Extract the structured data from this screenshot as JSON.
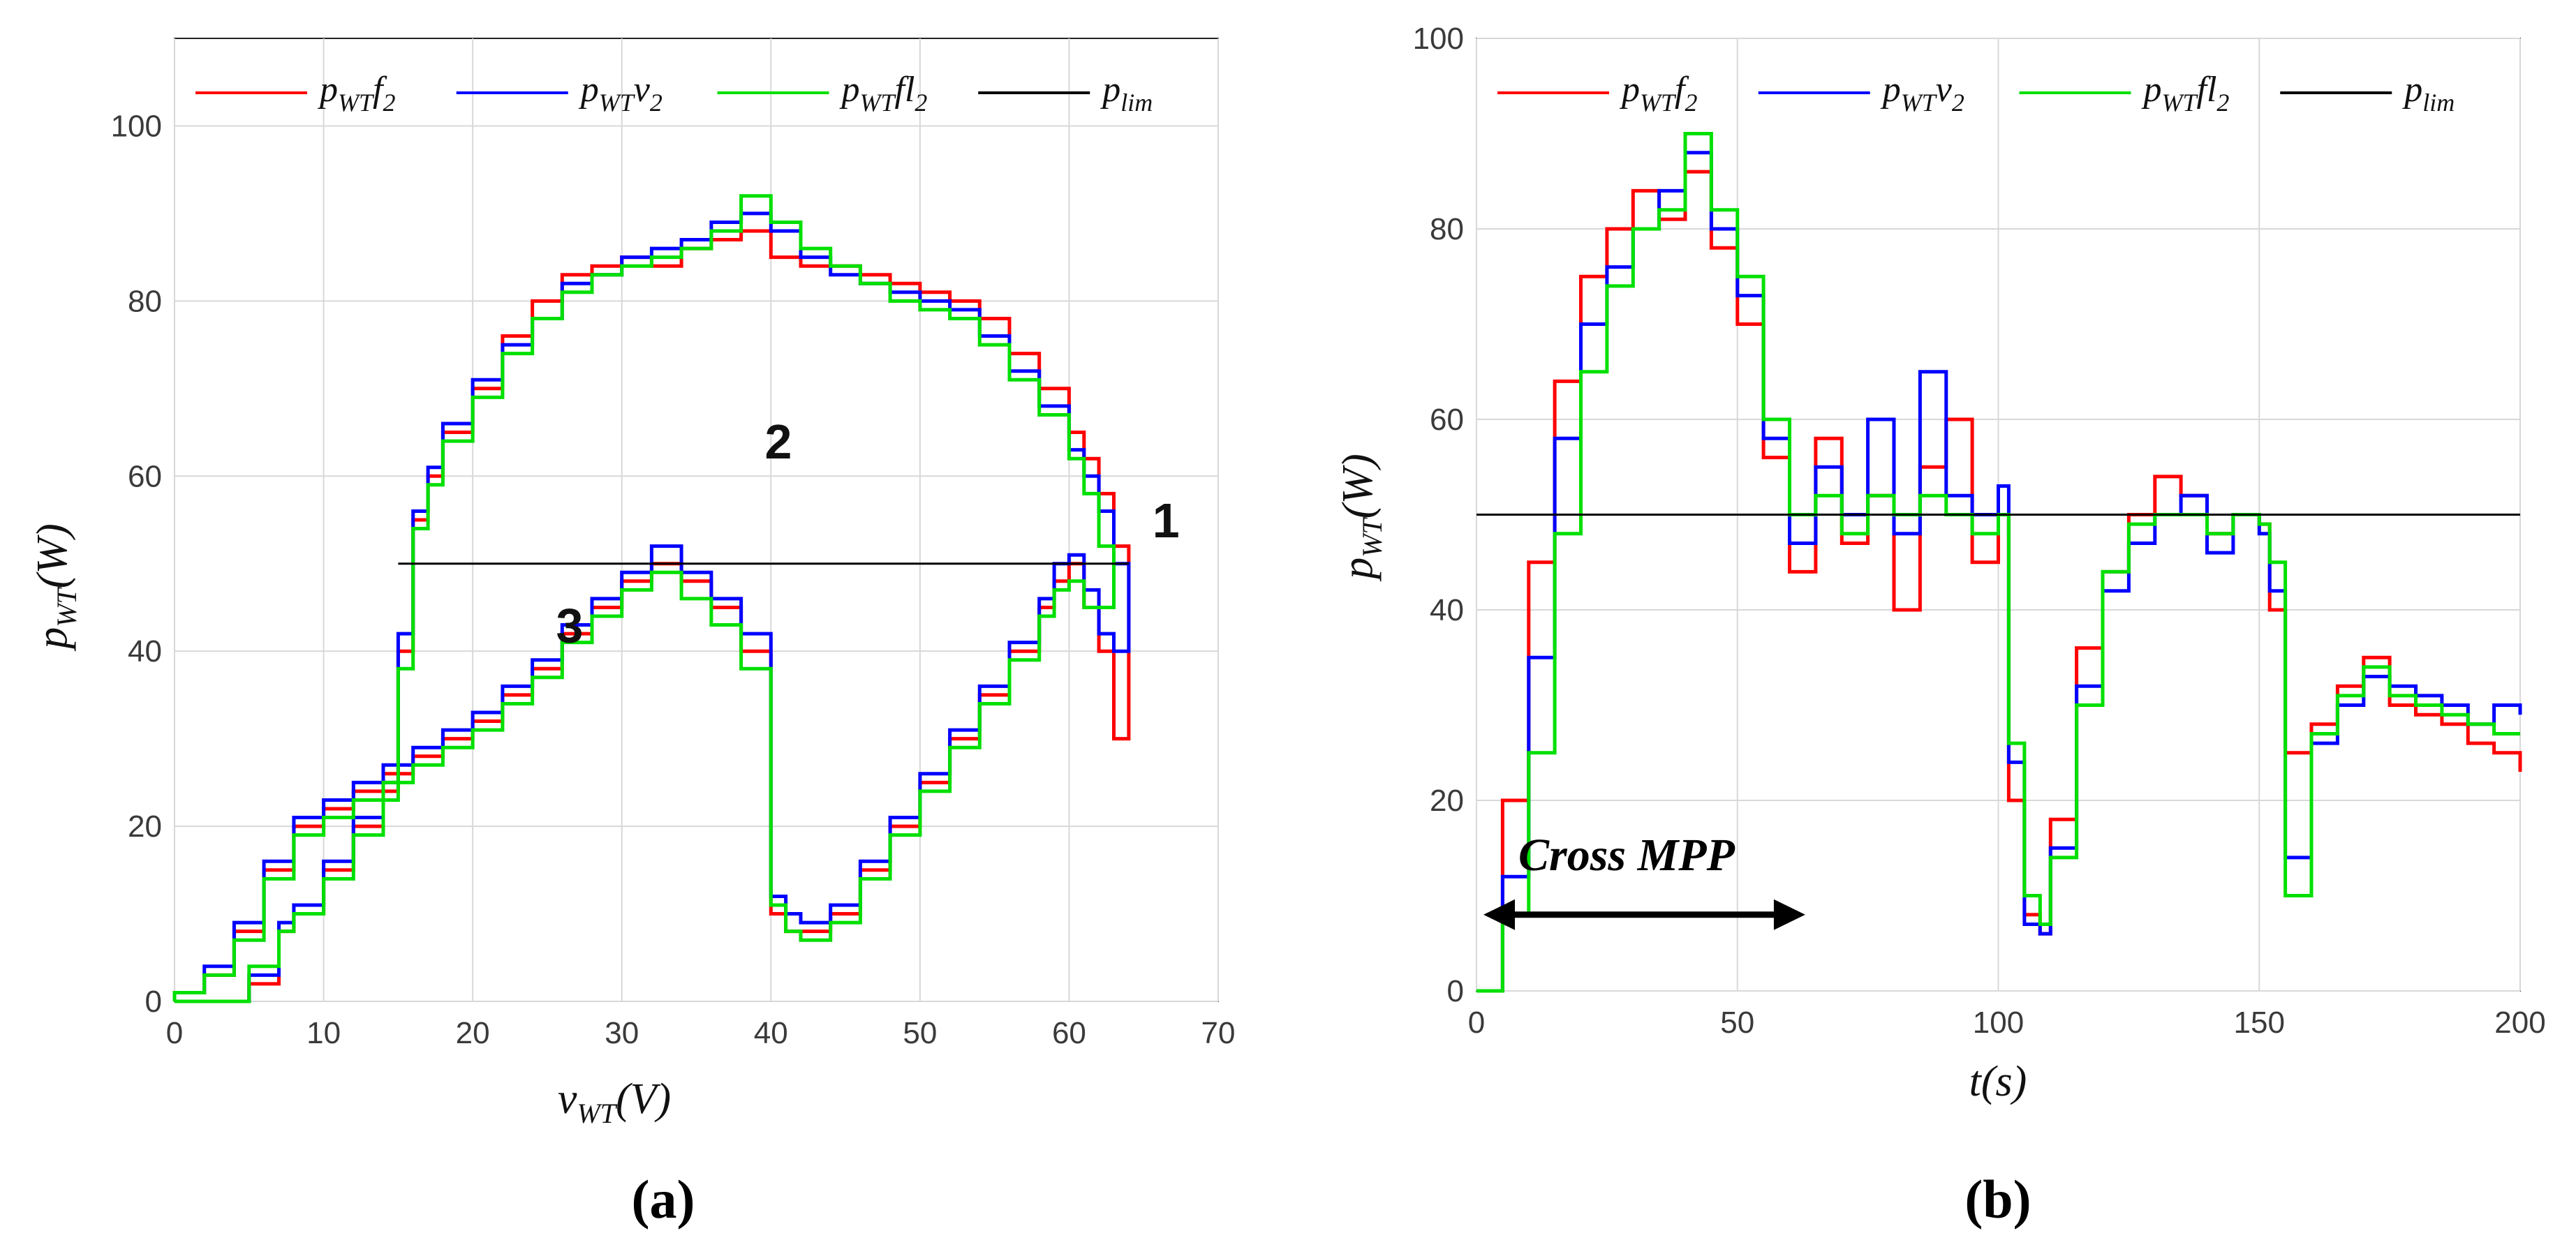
{
  "charts": [
    {
      "id": "a",
      "type": "line",
      "caption": "(a)",
      "xlabel": {
        "main": "v",
        "sub": "WT",
        "unit": "(V)"
      },
      "ylabel": {
        "main": "p",
        "sub": "WT",
        "unit": "(W)"
      },
      "xlim": [
        0,
        70
      ],
      "ylim": [
        0,
        110
      ],
      "xticks": [
        0,
        10,
        20,
        30,
        40,
        50,
        60,
        70
      ],
      "yticks": [
        0,
        20,
        40,
        60,
        80,
        100
      ],
      "grid": true,
      "legend_placement": "top",
      "legend": [
        {
          "main": "p",
          "sub": "WT",
          "tail": "f",
          "tailsub": "2",
          "color": "#ff0000"
        },
        {
          "main": "p",
          "sub": "WT",
          "tail": "v",
          "tailsub": "2",
          "color": "#0000ff"
        },
        {
          "main": "p",
          "sub": "WT",
          "tail": "fl",
          "tailsub": "2",
          "color": "#00e000"
        },
        {
          "main": "p",
          "sub": "lim",
          "tail": "",
          "tailsub": "",
          "color": "#000000"
        }
      ],
      "region_labels": [
        {
          "text": "1",
          "x": 66.5,
          "y": 53
        },
        {
          "text": "2",
          "x": 40.5,
          "y": 62
        },
        {
          "text": "3",
          "x": 26.5,
          "y": 41
        }
      ],
      "series": [
        {
          "name": "pWTf2",
          "color": "#ff0000",
          "x": [
            0,
            3,
            5,
            7,
            8,
            10,
            12,
            14,
            15,
            16,
            17,
            18,
            20,
            22,
            24,
            26,
            28,
            30,
            32,
            34,
            36,
            38,
            40,
            42,
            44,
            46,
            48,
            50,
            52,
            54,
            56,
            58,
            60,
            61,
            62,
            63,
            64,
            63,
            62,
            61,
            60,
            59,
            58,
            56,
            54,
            52,
            50,
            48,
            46,
            44,
            42,
            41,
            40,
            38,
            36,
            34,
            32,
            30,
            28,
            26,
            24,
            22,
            20,
            18,
            16,
            14,
            12,
            10,
            8,
            6,
            4,
            2,
            0
          ],
          "y": [
            0,
            0,
            2,
            8,
            10,
            15,
            20,
            24,
            40,
            55,
            60,
            65,
            70,
            76,
            80,
            83,
            84,
            85,
            84,
            86,
            87,
            88,
            85,
            84,
            84,
            83,
            82,
            81,
            80,
            78,
            74,
            70,
            65,
            62,
            58,
            52,
            30,
            40,
            45,
            50,
            48,
            45,
            40,
            35,
            30,
            25,
            20,
            15,
            10,
            8,
            8,
            10,
            40,
            45,
            48,
            50,
            48,
            45,
            42,
            38,
            35,
            32,
            30,
            28,
            26,
            24,
            22,
            20,
            15,
            8,
            3,
            1,
            0
          ]
        },
        {
          "name": "pWTv2",
          "color": "#0000ff",
          "x": [
            0,
            3,
            5,
            7,
            8,
            10,
            12,
            14,
            15,
            16,
            17,
            18,
            20,
            22,
            24,
            26,
            28,
            30,
            32,
            34,
            36,
            38,
            40,
            42,
            44,
            46,
            48,
            50,
            52,
            54,
            56,
            58,
            60,
            61,
            62,
            63,
            64,
            63,
            62,
            61,
            60,
            59,
            58,
            56,
            54,
            52,
            50,
            48,
            46,
            44,
            42,
            41,
            40,
            38,
            36,
            34,
            32,
            30,
            28,
            26,
            24,
            22,
            20,
            18,
            16,
            14,
            12,
            10,
            8,
            6,
            4,
            2,
            0
          ],
          "y": [
            0,
            0,
            3,
            9,
            11,
            16,
            21,
            25,
            42,
            56,
            61,
            66,
            71,
            75,
            78,
            82,
            83,
            85,
            86,
            87,
            89,
            90,
            88,
            85,
            83,
            82,
            81,
            80,
            79,
            76,
            72,
            68,
            63,
            60,
            56,
            50,
            40,
            42,
            47,
            51,
            50,
            46,
            41,
            36,
            31,
            26,
            21,
            16,
            11,
            9,
            10,
            12,
            42,
            46,
            49,
            52,
            49,
            46,
            43,
            39,
            36,
            33,
            31,
            29,
            27,
            25,
            23,
            21,
            16,
            9,
            4,
            1,
            0
          ]
        },
        {
          "name": "pWTfl2",
          "color": "#00e000",
          "x": [
            0,
            3,
            5,
            7,
            8,
            10,
            12,
            14,
            15,
            16,
            17,
            18,
            20,
            22,
            24,
            26,
            28,
            30,
            32,
            34,
            36,
            38,
            40,
            42,
            44,
            46,
            48,
            50,
            52,
            54,
            56,
            58,
            60,
            61,
            62,
            63,
            62,
            61,
            60,
            59,
            58,
            56,
            54,
            52,
            50,
            48,
            46,
            44,
            42,
            41,
            40,
            38,
            36,
            34,
            32,
            30,
            28,
            26,
            24,
            22,
            20,
            18,
            16,
            14,
            12,
            10,
            8,
            6,
            4,
            2,
            0
          ],
          "y": [
            0,
            0,
            4,
            8,
            10,
            14,
            19,
            23,
            38,
            54,
            59,
            64,
            69,
            74,
            78,
            81,
            83,
            84,
            85,
            86,
            88,
            92,
            89,
            86,
            84,
            82,
            80,
            79,
            78,
            75,
            71,
            67,
            62,
            58,
            52,
            45,
            45,
            48,
            47,
            44,
            39,
            34,
            29,
            24,
            19,
            14,
            9,
            7,
            8,
            11,
            38,
            43,
            46,
            49,
            47,
            44,
            41,
            37,
            34,
            31,
            29,
            27,
            25,
            23,
            21,
            19,
            14,
            7,
            3,
            1,
            0
          ]
        },
        {
          "name": "plim",
          "color": "#000000",
          "x": [
            15,
            64
          ],
          "y": [
            50,
            50
          ]
        }
      ]
    },
    {
      "id": "b",
      "type": "line",
      "caption": "(b)",
      "xlabel": {
        "main": "t",
        "sub": "",
        "unit": "(s)"
      },
      "ylabel": {
        "main": "p",
        "sub": "WT",
        "unit": "(W)"
      },
      "xlim": [
        0,
        200
      ],
      "ylim": [
        0,
        100
      ],
      "xticks": [
        0,
        50,
        100,
        150,
        200
      ],
      "yticks": [
        0,
        20,
        40,
        60,
        80,
        100
      ],
      "grid": true,
      "legend_placement": "top",
      "legend": [
        {
          "main": "p",
          "sub": "WT",
          "tail": "f",
          "tailsub": "2",
          "color": "#ff0000"
        },
        {
          "main": "p",
          "sub": "WT",
          "tail": "v",
          "tailsub": "2",
          "color": "#0000ff"
        },
        {
          "main": "p",
          "sub": "WT",
          "tail": "fl",
          "tailsub": "2",
          "color": "#00e000"
        },
        {
          "main": "p",
          "sub": "lim",
          "tail": "",
          "tailsub": "",
          "color": "#000000"
        }
      ],
      "annotation": {
        "text": "Cross MPP",
        "x_start": 0,
        "x_end": 63,
        "y": 8,
        "text_y": 14
      },
      "series": [
        {
          "name": "pWTf2",
          "color": "#ff0000",
          "x": [
            0,
            5,
            10,
            15,
            20,
            25,
            30,
            35,
            40,
            45,
            50,
            55,
            60,
            65,
            70,
            75,
            80,
            85,
            90,
            95,
            100,
            102,
            105,
            108,
            110,
            115,
            120,
            125,
            130,
            135,
            140,
            145,
            150,
            152,
            155,
            160,
            165,
            170,
            175,
            180,
            185,
            190,
            195,
            200
          ],
          "y": [
            0,
            20,
            45,
            64,
            75,
            80,
            84,
            81,
            86,
            78,
            70,
            56,
            44,
            58,
            47,
            52,
            40,
            55,
            60,
            45,
            50,
            20,
            8,
            6,
            18,
            36,
            44,
            50,
            54,
            52,
            48,
            50,
            49,
            40,
            25,
            28,
            32,
            35,
            30,
            29,
            28,
            26,
            25,
            23
          ]
        },
        {
          "name": "pWTv2",
          "color": "#0000ff",
          "x": [
            0,
            5,
            10,
            15,
            20,
            25,
            30,
            35,
            40,
            45,
            50,
            55,
            60,
            65,
            70,
            75,
            80,
            85,
            90,
            95,
            100,
            102,
            105,
            108,
            110,
            115,
            120,
            125,
            130,
            135,
            140,
            145,
            150,
            152,
            155,
            160,
            165,
            170,
            175,
            180,
            185,
            190,
            195,
            200
          ],
          "y": [
            0,
            12,
            35,
            58,
            70,
            76,
            80,
            84,
            88,
            80,
            73,
            58,
            47,
            55,
            50,
            60,
            48,
            65,
            52,
            50,
            53,
            24,
            7,
            6,
            15,
            32,
            42,
            47,
            50,
            52,
            46,
            50,
            48,
            42,
            14,
            26,
            30,
            33,
            32,
            31,
            30,
            28,
            30,
            29
          ]
        },
        {
          "name": "pWTfl2",
          "color": "#00e000",
          "x": [
            0,
            5,
            10,
            15,
            20,
            25,
            30,
            35,
            40,
            45,
            50,
            55,
            60,
            65,
            70,
            75,
            80,
            85,
            90,
            95,
            100,
            102,
            105,
            108,
            110,
            115,
            120,
            125,
            130,
            135,
            140,
            145,
            150,
            152,
            155,
            160,
            165,
            170,
            175,
            180,
            185,
            190,
            195,
            200
          ],
          "y": [
            0,
            8,
            25,
            48,
            65,
            74,
            80,
            82,
            90,
            82,
            75,
            60,
            50,
            52,
            48,
            52,
            50,
            52,
            50,
            48,
            50,
            26,
            10,
            7,
            14,
            30,
            44,
            49,
            50,
            50,
            48,
            50,
            49,
            45,
            10,
            27,
            31,
            34,
            31,
            30,
            29,
            28,
            27,
            27
          ]
        },
        {
          "name": "plim",
          "color": "#000000",
          "x": [
            0,
            200
          ],
          "y": [
            50,
            50
          ]
        }
      ]
    }
  ]
}
